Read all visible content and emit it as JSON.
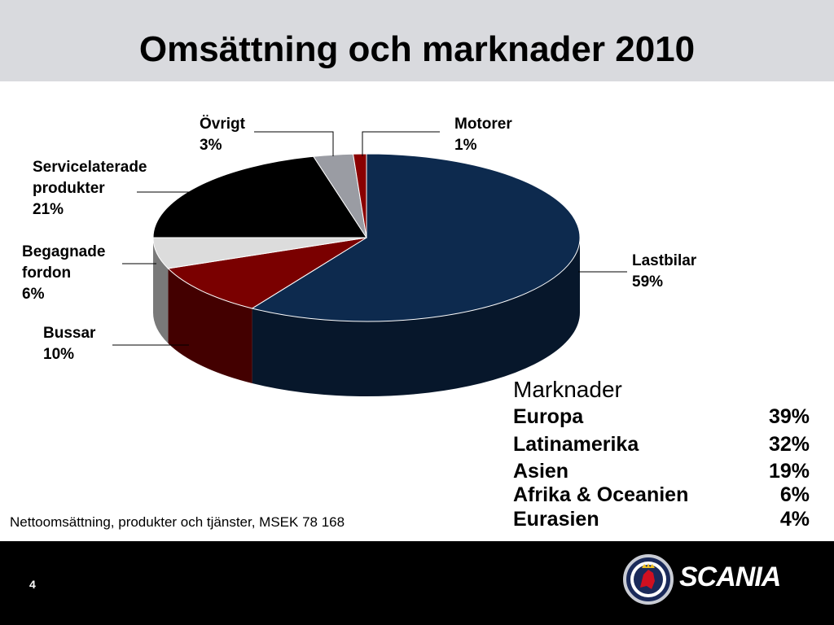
{
  "page": {
    "title": "Omsättning och marknader 2010",
    "footnote": "Nettoomsättning, produkter och tjänster, MSEK  78 168",
    "page_number": "4",
    "brand": "SCANIA"
  },
  "chart_data": {
    "type": "pie",
    "title": "",
    "slices": [
      {
        "label_lines": [
          "Lastbilar",
          "59%"
        ],
        "value": 59,
        "color": "#0d2a4e"
      },
      {
        "label_lines": [
          "Bussar",
          "10%"
        ],
        "value": 10,
        "color": "#7a0000"
      },
      {
        "label_lines": [
          "Begagnade",
          "fordon",
          "6%"
        ],
        "value": 6,
        "color": "#dcdcdc"
      },
      {
        "label_lines": [
          "Servicelaterade",
          "produkter",
          "21%"
        ],
        "value": 21,
        "color": "#000000"
      },
      {
        "label_lines": [
          "Övrigt",
          "3%"
        ],
        "value": 3,
        "color": "#9a9ca3"
      },
      {
        "label_lines": [
          "Motorer",
          "1%"
        ],
        "value": 1,
        "color": "#8a0000"
      }
    ]
  },
  "markets": {
    "title": "Marknader",
    "rows": [
      {
        "name": "Europa",
        "value": "39%"
      },
      {
        "name": "Latinamerika",
        "value": "32%"
      },
      {
        "name": "Asien",
        "value": "19%"
      },
      {
        "name": "Afrika & Oceanien",
        "value": "6%"
      },
      {
        "name": "Eurasien",
        "value": "4%"
      }
    ]
  }
}
